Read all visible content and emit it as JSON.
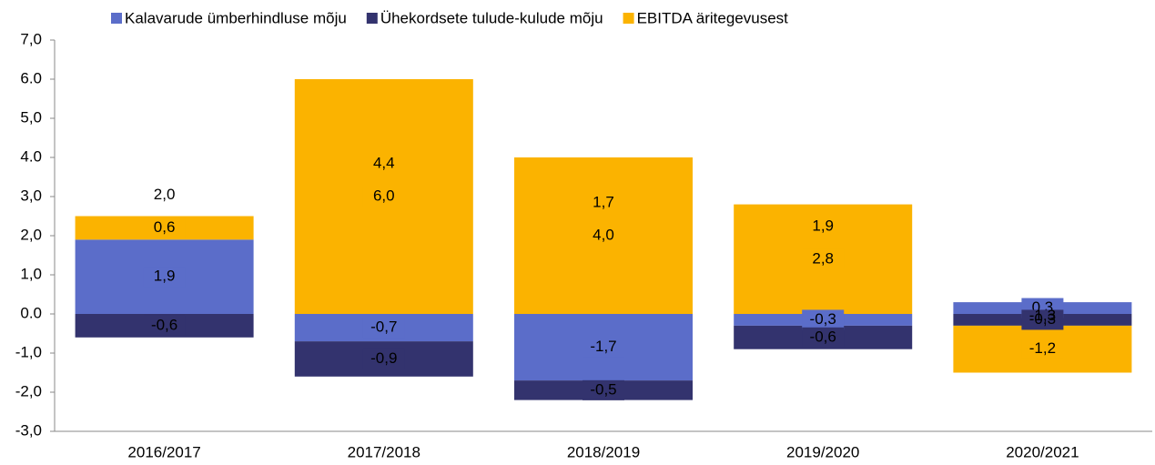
{
  "chart_data": {
    "type": "stacked-bar",
    "categories": [
      "2016/2017",
      "2017/2018",
      "2018/2019",
      "2019/2020",
      "2020/2021"
    ],
    "series": [
      {
        "name": "Kalavarude ümberhindluse mõju",
        "color": "#5b6dc9",
        "values": [
          1.9,
          -0.7,
          -1.7,
          -0.3,
          0.3
        ],
        "value_labels": [
          "1,9",
          "-0,7",
          "-1,7",
          "-0,3",
          "0,3"
        ]
      },
      {
        "name": "Ühekordsete tulude-kulude mõju",
        "color": "#33336e",
        "values": [
          -0.6,
          -0.9,
          -0.5,
          -0.6,
          -0.3
        ],
        "value_labels": [
          "-0,6",
          "-0,9",
          "-0,5",
          "-0,6",
          "-0,3"
        ]
      },
      {
        "name": "EBITDA äritegevusest",
        "color": "#fbb300",
        "values": [
          0.6,
          6.0,
          4.0,
          2.8,
          -1.2
        ],
        "value_labels": [
          "0,6",
          "6,0",
          "4,0",
          "2,8",
          "-1,2"
        ]
      }
    ],
    "totals": {
      "values": [
        2.0,
        4.4,
        1.7,
        1.9,
        -1.3
      ],
      "value_labels": [
        "2,0",
        "4,4",
        "1,7",
        "1,9",
        "-1,3"
      ]
    },
    "ylim": [
      -3,
      7
    ],
    "yticks": [
      {
        "value": -3,
        "label": "-3,0"
      },
      {
        "value": -2,
        "label": "-2,0"
      },
      {
        "value": -1,
        "label": "-1,0"
      },
      {
        "value": 0,
        "label": "0.0"
      },
      {
        "value": 1,
        "label": "1,0"
      },
      {
        "value": 2,
        "label": "2,0"
      },
      {
        "value": 3,
        "label": "3,0"
      },
      {
        "value": 4,
        "label": "4.0"
      },
      {
        "value": 5,
        "label": "5,0"
      },
      {
        "value": 6,
        "label": "6.0"
      },
      {
        "value": 7,
        "label": "7,0"
      }
    ],
    "legend": "top"
  }
}
